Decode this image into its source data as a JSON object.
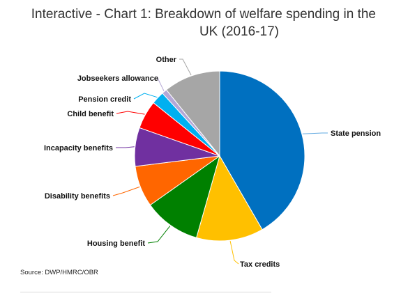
{
  "chart_data": {
    "type": "pie",
    "title_lines": [
      "Interactive - Chart 1: Breakdown of welfare spending in the",
      "UK (2016-17)"
    ],
    "source": "Source: DWP/HMRC/OBR",
    "slices": [
      {
        "label": "State pension",
        "value": 42.5,
        "color": "#0070c0",
        "line_color": "#5fa8e0"
      },
      {
        "label": "Tax credits",
        "value": 13.0,
        "color": "#ffc000",
        "line_color": "#ffc000"
      },
      {
        "label": "Housing benefit",
        "value": 11.0,
        "color": "#008000",
        "line_color": "#008000"
      },
      {
        "label": "Disability benefits",
        "value": 8.0,
        "color": "#ff6600",
        "line_color": "#ff6600"
      },
      {
        "label": "Incapacity benefits",
        "value": 7.5,
        "color": "#7030a0",
        "line_color": "#7030a0"
      },
      {
        "label": "Child benefit",
        "value": 5.5,
        "color": "#ff0000",
        "line_color": "#ff0000"
      },
      {
        "label": "Pension credit",
        "value": 2.5,
        "color": "#00b0f0",
        "line_color": "#00b0f0"
      },
      {
        "label": "Jobseekers allowance",
        "value": 1.0,
        "color": "#b4a7d6",
        "line_color": "#b4a7d6"
      },
      {
        "label": "Other",
        "value": 11.0,
        "color": "#a6a6a6",
        "line_color": "#a6a6a6"
      }
    ]
  }
}
